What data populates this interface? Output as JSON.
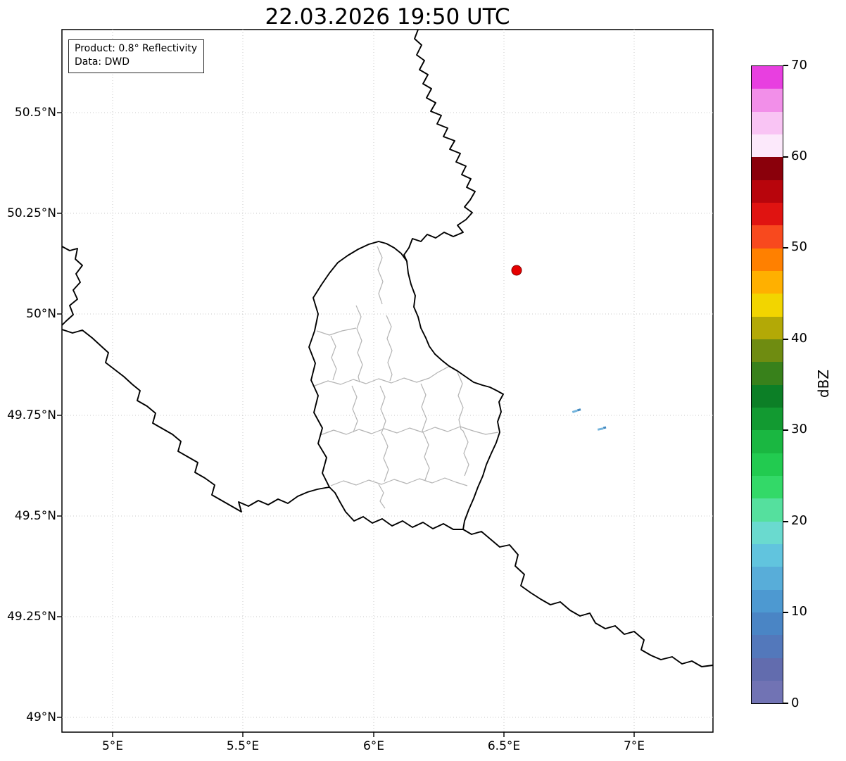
{
  "title": "22.03.2026 19:50 UTC",
  "info_box": {
    "product": "Product: 0.8° Reflectivity",
    "source": "Data: DWD"
  },
  "map": {
    "x_tick_labels": [
      "5°E",
      "5.5°E",
      "6°E",
      "6.5°E",
      "7°E"
    ],
    "y_tick_labels": [
      "50.5°N",
      "50.25°N",
      "50°N",
      "49.75°N",
      "49.5°N",
      "49.25°N",
      "49°N"
    ],
    "marker": {
      "color": "#e60000",
      "approx_lon": 6.55,
      "approx_lat": 50.11
    },
    "echo_colors": {
      "light": "#74b4dc",
      "dark": "#3f88c0"
    },
    "border_color": "#000000",
    "district_border_color": "#b4b4b4",
    "grid_color": "#c9c9c9"
  },
  "colorbar": {
    "label": "dBZ",
    "tick_labels": [
      "70",
      "60",
      "50",
      "40",
      "30",
      "20",
      "10",
      "0"
    ],
    "min": 0,
    "max": 70,
    "segments": [
      {
        "from": 0,
        "to": 2.5,
        "color": "#7173b4"
      },
      {
        "from": 2.5,
        "to": 5,
        "color": "#626cae"
      },
      {
        "from": 5,
        "to": 7.5,
        "color": "#5378bb"
      },
      {
        "from": 7.5,
        "to": 10,
        "color": "#4a85c5"
      },
      {
        "from": 10,
        "to": 12.5,
        "color": "#4d99d1"
      },
      {
        "from": 12.5,
        "to": 15,
        "color": "#58add9"
      },
      {
        "from": 15,
        "to": 17.5,
        "color": "#61c4de"
      },
      {
        "from": 17.5,
        "to": 20,
        "color": "#6adacf"
      },
      {
        "from": 20,
        "to": 22.5,
        "color": "#55e09e"
      },
      {
        "from": 22.5,
        "to": 25,
        "color": "#33d968"
      },
      {
        "from": 25,
        "to": 27.5,
        "color": "#22cb50"
      },
      {
        "from": 27.5,
        "to": 30,
        "color": "#1ab741"
      },
      {
        "from": 30,
        "to": 32.5,
        "color": "#129a31"
      },
      {
        "from": 32.5,
        "to": 35,
        "color": "#0c7f26"
      },
      {
        "from": 35,
        "to": 37.5,
        "color": "#38811b"
      },
      {
        "from": 37.5,
        "to": 40,
        "color": "#6f8c11"
      },
      {
        "from": 40,
        "to": 42.5,
        "color": "#b3a906"
      },
      {
        "from": 42.5,
        "to": 45,
        "color": "#f2d500"
      },
      {
        "from": 45,
        "to": 47.5,
        "color": "#ffb000"
      },
      {
        "from": 47.5,
        "to": 50,
        "color": "#ff8000"
      },
      {
        "from": 50,
        "to": 52.5,
        "color": "#f8491e"
      },
      {
        "from": 52.5,
        "to": 55,
        "color": "#e01311"
      },
      {
        "from": 55,
        "to": 57.5,
        "color": "#b8050c"
      },
      {
        "from": 57.5,
        "to": 60,
        "color": "#8a000b"
      },
      {
        "from": 60,
        "to": 62.5,
        "color": "#fce9fb"
      },
      {
        "from": 62.5,
        "to": 65,
        "color": "#f9c4f4"
      },
      {
        "from": 65,
        "to": 67.5,
        "color": "#f28fe9"
      },
      {
        "from": 67.5,
        "to": 70,
        "color": "#e83fe0"
      }
    ]
  },
  "chart_data": {
    "type": "heatmap",
    "title": "22.03.2026 19:50 UTC",
    "x_ticks": [
      "5°E",
      "5.5°E",
      "6°E",
      "6.5°E",
      "7°E"
    ],
    "y_ticks": [
      "50.5°N",
      "50.25°N",
      "50°N",
      "49.75°N",
      "49.5°N",
      "49.25°N",
      "49°N"
    ],
    "lon_range": [
      4.8,
      7.31
    ],
    "lat_range": [
      48.96,
      50.71
    ],
    "grid": true,
    "colorbar": {
      "label": "dBZ",
      "min": 0,
      "max": 70,
      "ticks": [
        0,
        10,
        20,
        30,
        40,
        50,
        60,
        70
      ]
    },
    "radar_site_marker": {
      "lon": 6.55,
      "lat": 50.11
    },
    "echoes": [
      {
        "lon": 6.78,
        "lat": 49.75,
        "dbz_approx": 10
      },
      {
        "lon": 6.88,
        "lat": 49.72,
        "dbz_approx": 10
      }
    ]
  }
}
